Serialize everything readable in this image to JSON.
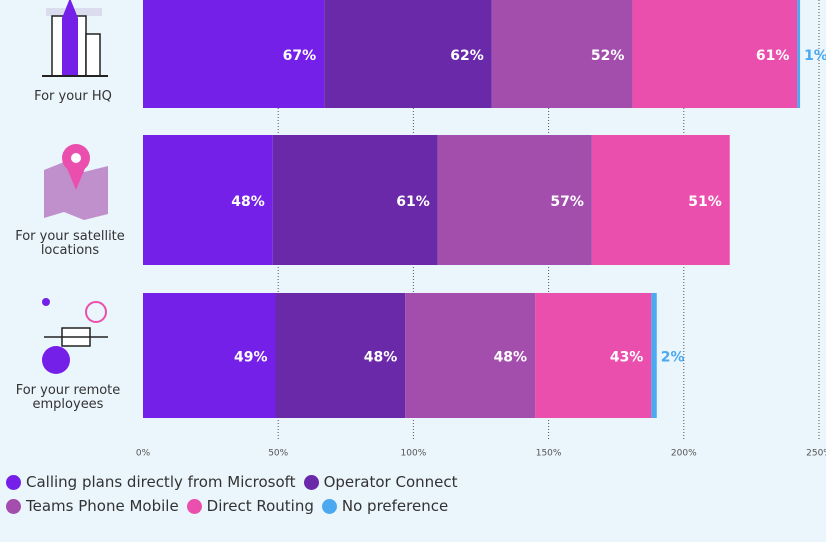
{
  "chart_data": {
    "type": "stacked-bar",
    "categories": [
      "For your HQ",
      "For your satellite locations",
      "For your remote employees"
    ],
    "series": [
      {
        "name": "Calling plans directly from Microsoft",
        "color": "#7420e8",
        "values": [
          67,
          48,
          49
        ],
        "value_labels": [
          "67%",
          "48%",
          "49%"
        ]
      },
      {
        "name": "Operator Connect",
        "color": "#6a29a8",
        "values": [
          62,
          61,
          48
        ],
        "value_labels": [
          "62%",
          "61%",
          "48%"
        ]
      },
      {
        "name": "Teams Phone Mobile",
        "color": "#a34dad",
        "values": [
          52,
          57,
          48
        ],
        "value_labels": [
          "52%",
          "57%",
          "48%"
        ]
      },
      {
        "name": "Direct Routing",
        "color": "#ea4fad",
        "values": [
          61,
          51,
          43
        ],
        "value_labels": [
          "61%",
          "51%",
          "43%"
        ]
      },
      {
        "name": "No preference",
        "color": "#4aa9f0",
        "values": [
          1,
          null,
          2
        ],
        "value_labels": [
          "1%",
          null,
          "2%"
        ]
      }
    ],
    "xlim": [
      0,
      250
    ],
    "xticks": [
      {
        "value": 0,
        "label": "0%"
      },
      {
        "value": 50,
        "label": "50%"
      },
      {
        "value": 100,
        "label": "100%"
      },
      {
        "value": 150,
        "label": "150%"
      },
      {
        "value": 200,
        "label": "200%"
      },
      {
        "value": 250,
        "label": "250%"
      }
    ],
    "grid": true
  }
}
